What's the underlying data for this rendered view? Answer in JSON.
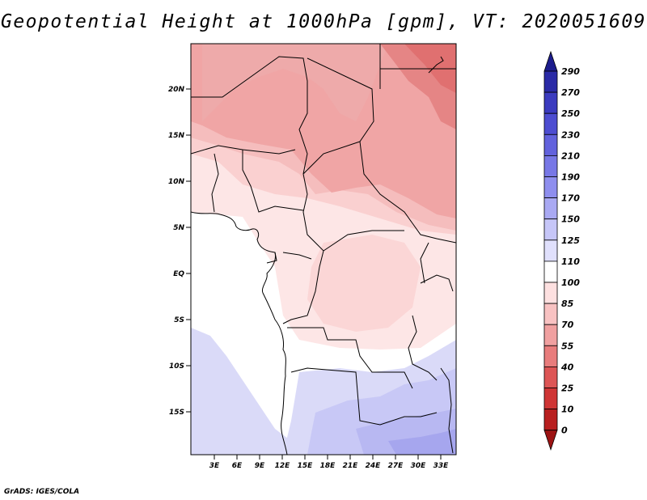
{
  "title": "Geopotential Height at 1000hPa [gpm], VT: 2020051609",
  "credit": "GrADS: IGES/COLA",
  "map": {
    "lat_labels": [
      "20N",
      "15N",
      "10N",
      "5N",
      "EQ",
      "5S",
      "10S",
      "15S"
    ],
    "lon_labels": [
      "3E",
      "6E",
      "9E",
      "12E",
      "15E",
      "18E",
      "21E",
      "24E",
      "27E",
      "30E",
      "33E"
    ]
  },
  "colorbar": {
    "levels": [
      "290",
      "270",
      "250",
      "230",
      "210",
      "190",
      "170",
      "150",
      "125",
      "110",
      "100",
      "85",
      "70",
      "55",
      "40",
      "25",
      "10",
      "0"
    ],
    "colors_top_to_bottom": [
      "#1c1c8c",
      "#2a2aa6",
      "#3b3bbf",
      "#4d4dd1",
      "#6262dd",
      "#7777e6",
      "#8e8eee",
      "#a9a9f3",
      "#c6c6f8",
      "#e0e0fc",
      "#ffffff",
      "#fde0e0",
      "#f8c2c2",
      "#f0a0a0",
      "#e87c7c",
      "#dd5555",
      "#cf3535",
      "#b81f1f",
      "#9c1313"
    ]
  },
  "colors": {
    "red_high": "#e07070",
    "red_mid": "#f0a5a5",
    "red_low": "#fad0d0",
    "pink_light": "#fde6e6",
    "blue_light": "#dadaf8",
    "blue_mid": "#b8b8f2",
    "blue_deep": "#9c9ce8"
  }
}
